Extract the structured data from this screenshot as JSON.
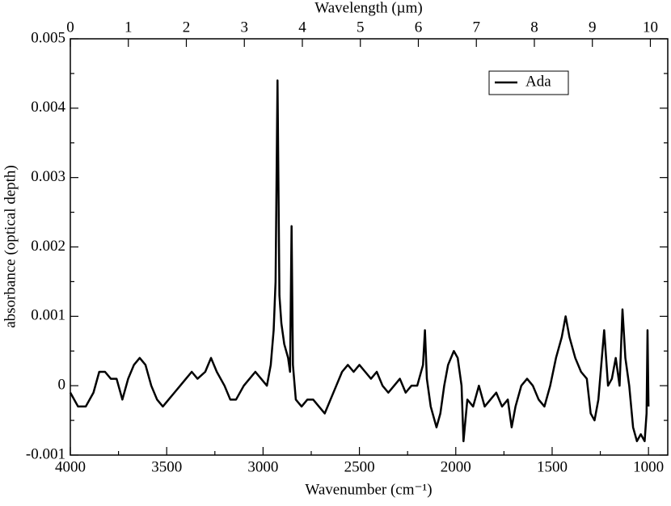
{
  "chart_data": {
    "type": "line",
    "xlabel": "Wavenumber (cm⁻¹)",
    "x2label": "Wavelength (µm)",
    "ylabel": "absorbance (optical depth)",
    "xlim": [
      4000,
      900
    ],
    "xticks": [
      4000,
      3500,
      3000,
      2500,
      2000,
      1500,
      1000
    ],
    "xminor_ticks": [
      3750,
      3250,
      2750,
      2250,
      1750,
      1250
    ],
    "x2lim": [
      0,
      10.3
    ],
    "x2ticks": [
      0,
      1,
      2,
      3,
      4,
      5,
      6,
      7,
      8,
      9,
      10
    ],
    "ylim": [
      -0.001,
      0.005
    ],
    "yticks": [
      -0.001,
      0,
      0.001,
      0.002,
      0.003,
      0.004,
      0.005
    ],
    "yminor_ticks": [
      -0.0005,
      0.0005,
      0.0015,
      0.0025,
      0.0035,
      0.0045
    ],
    "legend": "upper right",
    "x": [
      4000,
      3960,
      3920,
      3880,
      3850,
      3820,
      3790,
      3760,
      3730,
      3700,
      3670,
      3640,
      3610,
      3580,
      3550,
      3520,
      3490,
      3460,
      3430,
      3400,
      3370,
      3340,
      3300,
      3270,
      3240,
      3200,
      3170,
      3140,
      3100,
      3070,
      3040,
      3010,
      2980,
      2960,
      2945,
      2935,
      2925,
      2915,
      2905,
      2890,
      2870,
      2860,
      2852,
      2845,
      2830,
      2800,
      2770,
      2740,
      2710,
      2680,
      2650,
      2620,
      2590,
      2560,
      2530,
      2500,
      2470,
      2440,
      2410,
      2380,
      2350,
      2320,
      2290,
      2260,
      2230,
      2200,
      2170,
      2160,
      2150,
      2130,
      2100,
      2080,
      2060,
      2040,
      2010,
      1990,
      1970,
      1960,
      1940,
      1910,
      1880,
      1850,
      1820,
      1790,
      1760,
      1730,
      1710,
      1690,
      1660,
      1630,
      1600,
      1570,
      1540,
      1510,
      1480,
      1450,
      1430,
      1410,
      1380,
      1350,
      1320,
      1300,
      1280,
      1260,
      1230,
      1210,
      1190,
      1170,
      1150,
      1135,
      1120,
      1100,
      1080,
      1060,
      1040,
      1020,
      1010,
      1005,
      1000
    ],
    "series": [
      {
        "name": "Ada",
        "color": "#000000",
        "values": [
          -0.0001,
          -0.0003,
          -0.0003,
          -0.0001,
          0.0002,
          0.0002,
          0.0001,
          0.0001,
          -0.0002,
          0.0001,
          0.0003,
          0.0004,
          0.0003,
          0.0,
          -0.0002,
          -0.0003,
          -0.0002,
          -0.0001,
          0.0,
          0.0001,
          0.0002,
          0.0001,
          0.0002,
          0.0004,
          0.0002,
          0.0,
          -0.0002,
          -0.0002,
          0.0,
          0.0001,
          0.0002,
          0.0001,
          0.0,
          0.0003,
          0.0008,
          0.0015,
          0.0044,
          0.0013,
          0.0009,
          0.0006,
          0.0004,
          0.0002,
          0.0023,
          0.0003,
          -0.0002,
          -0.0003,
          -0.0002,
          -0.0002,
          -0.0003,
          -0.0004,
          -0.0002,
          0.0,
          0.0002,
          0.0003,
          0.0002,
          0.0003,
          0.0002,
          0.0001,
          0.0002,
          0.0,
          -0.0001,
          0.0,
          0.0001,
          -0.0001,
          0.0,
          0.0,
          0.0003,
          0.0008,
          0.0001,
          -0.0003,
          -0.0006,
          -0.0004,
          0.0,
          0.0003,
          0.0005,
          0.0004,
          0.0,
          -0.0008,
          -0.0002,
          -0.0003,
          0.0,
          -0.0003,
          -0.0002,
          -0.0001,
          -0.0003,
          -0.0002,
          -0.0006,
          -0.0003,
          0.0,
          0.0001,
          0.0,
          -0.0002,
          -0.0003,
          0.0,
          0.0004,
          0.0007,
          0.001,
          0.0007,
          0.0004,
          0.0002,
          0.0001,
          -0.0004,
          -0.0005,
          -0.0002,
          0.0008,
          0.0,
          0.0001,
          0.0004,
          0.0,
          0.0011,
          0.0004,
          0.0,
          -0.0006,
          -0.0008,
          -0.0007,
          -0.0008,
          -0.0004,
          0.0008,
          -0.0003
        ]
      }
    ]
  }
}
